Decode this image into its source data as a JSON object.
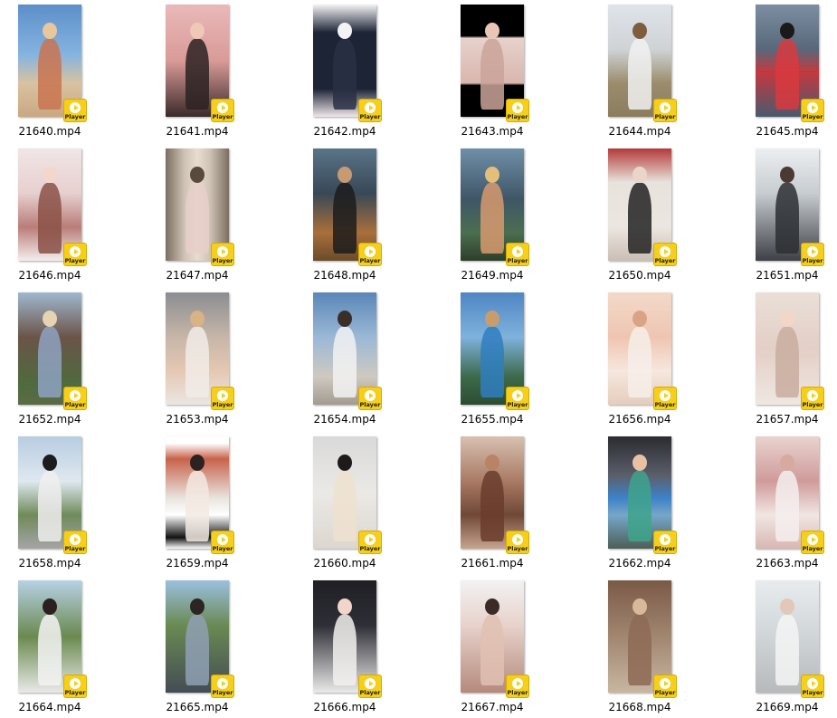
{
  "badge_label": "Player",
  "files": [
    {
      "name": "21640.mp4",
      "bg": "linear-gradient(180deg,#5c8fc9 0%,#86b4e0 45%,#d9c2a0 70%,#c9a883 100%)",
      "fig": "#c9744f",
      "head": "#e8c79a"
    },
    {
      "name": "21641.mp4",
      "bg": "linear-gradient(180deg,#e9b9b9 0%,#d99b98 50%,#3a2a2a 100%)",
      "fig": "#2b2222",
      "head": "#f0c8b6"
    },
    {
      "name": "21642.mp4",
      "bg": "linear-gradient(180deg,#f3f3f5 0%,#1d2436 25%,#1d2436 75%,#efe7ea 100%)",
      "fig": "#2a3044",
      "head": "#f3f3f5"
    },
    {
      "name": "21643.mp4",
      "bg": "linear-gradient(180deg,#000000 0%,#000000 28%,#e7d2cc 30%,#d9b6ae 70%,#000000 72%,#000000 100%)",
      "fig": "#caa39a",
      "head": "#e9c6b6"
    },
    {
      "name": "21644.mp4",
      "bg": "linear-gradient(180deg,#dfe4ea 0%,#cfd3d6 40%,#9b8d6c 70%,#8a7c5d 100%)",
      "fig": "#f1f1f1",
      "head": "#7d5c3f"
    },
    {
      "name": "21645.mp4",
      "bg": "linear-gradient(180deg,#7d8ea2 0%,#58687a 40%,#c4383e 60%,#4a5a6e 100%)",
      "fig": "#d83a3f",
      "head": "#1a1a1a"
    },
    {
      "name": "21646.mp4",
      "bg": "linear-gradient(180deg,#f1e6e6 0%,#e7cfcf 40%,#b97d78 70%,#f3efef 100%)",
      "fig": "#8a5147",
      "head": "#f4d7cc"
    },
    {
      "name": "21647.mp4",
      "bg": "linear-gradient(90deg,#7b6f63 0%,#cfc3b5 30%,#e9ddd0 50%,#cfc3b5 70%,#7b6f63 100%)",
      "fig": "#e8cfc9",
      "head": "#5a4a3e"
    },
    {
      "name": "21648.mp4",
      "bg": "linear-gradient(180deg,#5a7488 0%,#384857 40%,#a96f3a 75%,#6b4b2b 100%)",
      "fig": "#1c1c1c",
      "head": "#c89a73"
    },
    {
      "name": "21649.mp4",
      "bg": "linear-gradient(180deg,#6f8fa8 0%,#3f5667 45%,#4b6e4f 75%,#2e3e2a 100%)",
      "fig": "#d79a6e",
      "head": "#e5be79"
    },
    {
      "name": "21650.mp4",
      "bg": "linear-gradient(180deg,#b43a3a 0%,#e8e2dc 30%,#ece6e0 70%,#c9beb3 100%)",
      "fig": "#222222",
      "head": "#e9d6c9"
    },
    {
      "name": "21651.mp4",
      "bg": "linear-gradient(180deg,#eceff1 0%,#c7ccd0 40%,#3d4046 100%)",
      "fig": "#2d2f33",
      "head": "#4a3a33"
    },
    {
      "name": "21652.mp4",
      "bg": "linear-gradient(180deg,#9fb8cf 0%,#6b5447 40%,#4f6a3e 80%,#5b6b45 100%)",
      "fig": "#8ea2c2",
      "head": "#e6d3b2"
    },
    {
      "name": "21653.mp4",
      "bg": "linear-gradient(180deg,#8b8d92 0%,#c7b6a8 40%,#e5c8b3 70%,#ebe6e2 100%)",
      "fig": "#f1ece8",
      "head": "#d8b384"
    },
    {
      "name": "21654.mp4",
      "bg": "linear-gradient(180deg,#5a86b8 0%,#9bb8d6 40%,#cfc9c0 75%,#a39b8f 100%)",
      "fig": "#f2f2f2",
      "head": "#3a2e28"
    },
    {
      "name": "21655.mp4",
      "bg": "linear-gradient(180deg,#4f86c3 0%,#7fb2dc 40%,#3d6a4a 75%,#2d4d33 100%)",
      "fig": "#2f7ec0",
      "head": "#c99d6b"
    },
    {
      "name": "21656.mp4",
      "bg": "linear-gradient(180deg,#f3d9c9 0%,#efc5b2 40%,#f7e7dd 70%,#e4cdbd 100%)",
      "fig": "#f6efe9",
      "head": "#d9a484"
    },
    {
      "name": "21657.mp4",
      "bg": "linear-gradient(180deg,#eadfd8 0%,#e3cfc6 50%,#efe7e2 100%)",
      "fig": "#c9ada0",
      "head": "#f2d6c8"
    },
    {
      "name": "21658.mp4",
      "bg": "linear-gradient(180deg,#b8cde0 0%,#dfe8ef 40%,#6f8a5a 70%,#a5a5a5 100%)",
      "fig": "#efefef",
      "head": "#1c1c1c"
    },
    {
      "name": "21659.mp4",
      "bg": "linear-gradient(180deg,#ffffff 0%,#ffffff 6%,#c8624a 20%,#e9e4df 55%,#ffffff 70%,#111111 90%,#ffffff 100%)",
      "fig": "#f2e9e2",
      "head": "#2c2220"
    },
    {
      "name": "21660.mp4",
      "bg": "linear-gradient(180deg,#d9d9d9 0%,#ebe9e6 50%,#dcd6cf 100%)",
      "fig": "#efe0cf",
      "head": "#1f1a1a"
    },
    {
      "name": "21661.mp4",
      "bg": "linear-gradient(180deg,#d8c0b1 0%,#a97a64 40%,#704837 70%,#c7a48f 100%)",
      "fig": "#6a3c2b",
      "head": "#b98466"
    },
    {
      "name": "21662.mp4",
      "bg": "linear-gradient(180deg,#2b2b30 0%,#5b5f6a 35%,#3d82c9 55%,#76a7c9 70%,#4d5e55 100%)",
      "fig": "#3ea38c",
      "head": "#e9c2a6"
    },
    {
      "name": "21663.mp4",
      "bg": "linear-gradient(180deg,#e9d3cf 0%,#cf9b9a 40%,#f1e6e3 70%,#d8b7b1 100%)",
      "fig": "#f5eeee",
      "head": "#d6aaa0"
    },
    {
      "name": "21664.mp4",
      "bg": "linear-gradient(180deg,#b8d1e5 0%,#6a8a4f 50%,#e9e9e9 100%)",
      "fig": "#f3f3f3",
      "head": "#2a2020"
    },
    {
      "name": "21665.mp4",
      "bg": "linear-gradient(180deg,#9cc0e0 0%,#6a8a53 40%,#444c55 100%)",
      "fig": "#8fa0b4",
      "head": "#2d2523"
    },
    {
      "name": "21666.mp4",
      "bg": "linear-gradient(180deg,#1f1f24 0%,#2e2e36 40%,#eaeaea 100%)",
      "fig": "#f3f0ee",
      "head": "#f1d5c8"
    },
    {
      "name": "21667.mp4",
      "bg": "linear-gradient(180deg,#f2f2f2 0%,#e8d2cb 40%,#b58a7c 100%)",
      "fig": "#e0c1b3",
      "head": "#3a2b26"
    },
    {
      "name": "21668.mp4",
      "bg": "linear-gradient(180deg,#7a5a47 0%,#a18670 50%,#c8b6a2 100%)",
      "fig": "#8d6a55",
      "head": "#d9b99c"
    },
    {
      "name": "21669.mp4",
      "bg": "linear-gradient(180deg,#e8ecef 0%,#d0d5d8 50%,#b7b9bb 100%)",
      "fig": "#f4f4f4",
      "head": "#e2c8b8"
    }
  ]
}
